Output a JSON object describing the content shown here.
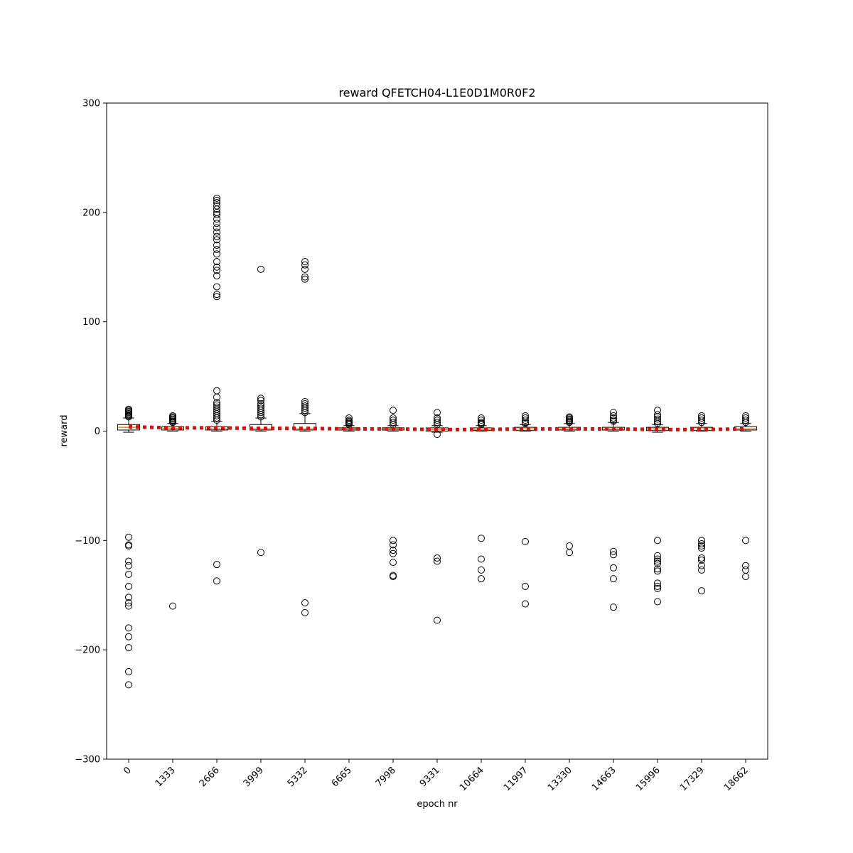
{
  "chart_data": {
    "type": "box",
    "title": "reward QFETCH04-L1E0D1M0R0F2",
    "xlabel": "epoch nr",
    "ylabel": "reward",
    "categories": [
      "0",
      "1333",
      "2666",
      "3999",
      "5332",
      "6665",
      "7998",
      "9331",
      "10664",
      "11997",
      "13330",
      "14663",
      "15996",
      "17329",
      "18662"
    ],
    "boxes": [
      {
        "whislo": -1,
        "q1": 1,
        "med": 3.5,
        "q3": 6,
        "whishi": 12,
        "fliers": [
          13,
          14,
          15,
          16,
          17,
          18,
          19,
          20,
          -97,
          -104,
          -105,
          -119,
          -123,
          -131,
          -142,
          -152,
          -157,
          -160,
          -180,
          -188,
          -198,
          -220,
          -232
        ]
      },
      {
        "whislo": 0,
        "q1": 1,
        "med": 2.5,
        "q3": 4,
        "whishi": 7,
        "fliers": [
          8,
          9,
          10,
          11,
          12,
          13,
          14,
          -160
        ]
      },
      {
        "whislo": 0,
        "q1": 1,
        "med": 2,
        "q3": 4,
        "whishi": 9,
        "fliers": [
          10,
          12,
          14,
          16,
          18,
          20,
          22,
          24,
          26,
          31,
          37,
          123,
          125,
          132,
          142,
          147,
          150,
          155,
          162,
          166,
          170,
          175,
          178,
          182,
          186,
          190,
          194,
          198,
          200,
          203,
          206,
          209,
          211,
          213,
          -122,
          -137
        ]
      },
      {
        "whislo": 0,
        "q1": 1,
        "med": 2,
        "q3": 6,
        "whishi": 12,
        "fliers": [
          13,
          15,
          17,
          19,
          21,
          23,
          25,
          28,
          30,
          148,
          -111
        ]
      },
      {
        "whislo": 0,
        "q1": 1,
        "med": 2,
        "q3": 7,
        "whishi": 16,
        "fliers": [
          17,
          19,
          21,
          23,
          25,
          27,
          139,
          141,
          148,
          152,
          155,
          -157,
          -166
        ]
      },
      {
        "whislo": 0,
        "q1": 1,
        "med": 2,
        "q3": 3,
        "whishi": 5,
        "fliers": [
          6,
          7,
          8,
          9,
          10,
          12
        ]
      },
      {
        "whislo": 0,
        "q1": 1,
        "med": 2,
        "q3": 3,
        "whishi": 5,
        "fliers": [
          6,
          8,
          10,
          12,
          19,
          -100,
          -104,
          -109,
          -112,
          -120,
          -132,
          -133
        ]
      },
      {
        "whislo": -1,
        "q1": 0,
        "med": 1.5,
        "q3": 3,
        "whishi": 5,
        "fliers": [
          6,
          8,
          10,
          12,
          17,
          -3,
          -116,
          -119,
          -173
        ]
      },
      {
        "whislo": 0,
        "q1": 0.5,
        "med": 1.5,
        "q3": 3,
        "whishi": 5,
        "fliers": [
          6,
          7,
          8,
          10,
          12,
          -98,
          -117,
          -127,
          -135
        ]
      },
      {
        "whislo": 0,
        "q1": 0.5,
        "med": 2,
        "q3": 3.5,
        "whishi": 6,
        "fliers": [
          7,
          8,
          10,
          12,
          14,
          -101,
          -142,
          -158
        ]
      },
      {
        "whislo": 0,
        "q1": 1,
        "med": 2,
        "q3": 3.5,
        "whishi": 7,
        "fliers": [
          8,
          9,
          10,
          11,
          12,
          13,
          -105,
          -111
        ]
      },
      {
        "whislo": 0,
        "q1": 1,
        "med": 2,
        "q3": 3.5,
        "whishi": 8,
        "fliers": [
          9,
          10,
          12,
          14,
          17,
          -110,
          -113,
          -125,
          -135,
          -161
        ]
      },
      {
        "whislo": -1,
        "q1": 0.5,
        "med": 2,
        "q3": 3.5,
        "whishi": 6,
        "fliers": [
          7,
          9,
          11,
          13,
          15,
          19,
          -100,
          -114,
          -117,
          -119,
          -121,
          -126,
          -128,
          -139,
          -142,
          -144,
          -156
        ]
      },
      {
        "whislo": 0,
        "q1": 0.5,
        "med": 2,
        "q3": 3.5,
        "whishi": 7,
        "fliers": [
          8,
          10,
          12,
          14,
          -100,
          -103,
          -105,
          -107,
          -116,
          -118,
          -123,
          -127,
          -146
        ]
      },
      {
        "whislo": 0,
        "q1": 1,
        "med": 2,
        "q3": 4,
        "whishi": 7,
        "fliers": [
          8,
          10,
          12,
          14,
          -100,
          -123,
          -127,
          -133
        ]
      }
    ],
    "means": [
      4,
      3,
      3,
      2.5,
      2.5,
      2,
      2,
      1.5,
      1.5,
      2,
      2,
      2,
      1.5,
      1.5,
      2
    ],
    "box_color": "#000000",
    "median_color": "#ff7f0e",
    "mean_color": "#ff0000",
    "ylim": [
      -300,
      300
    ],
    "yticks": [
      {
        "value": -300,
        "label": "−300"
      },
      {
        "value": -200,
        "label": "−200"
      },
      {
        "value": -100,
        "label": "−100"
      },
      0,
      100,
      200,
      300
    ]
  }
}
